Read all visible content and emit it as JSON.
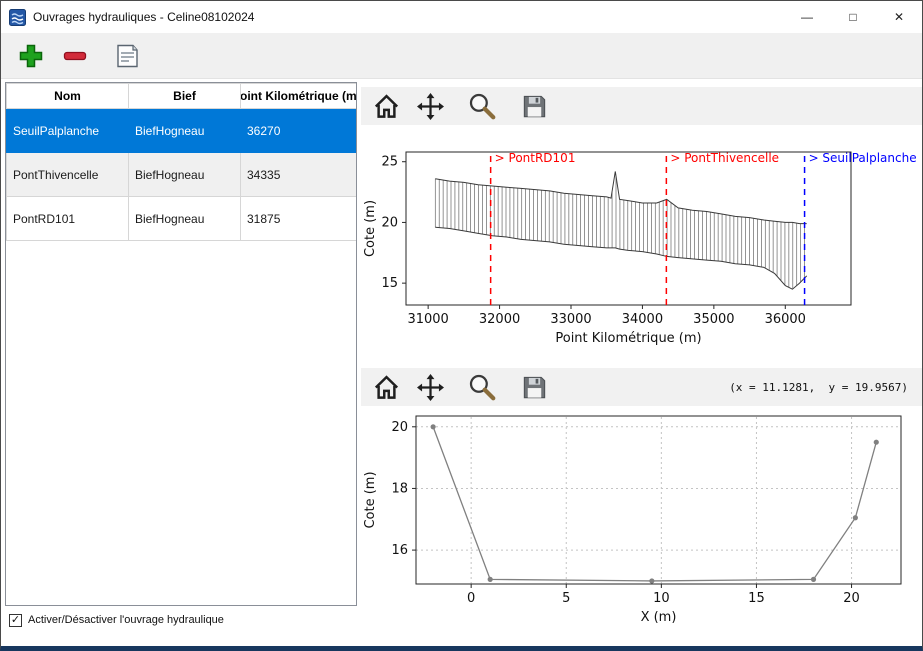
{
  "window": {
    "title": "Ouvrages hydrauliques - Celine08102024",
    "controls": {
      "minimize": "—",
      "maximize": "□",
      "close": "✕"
    }
  },
  "toolbar": {
    "add_tooltip": "add-structure",
    "remove_tooltip": "remove-structure",
    "edit_tooltip": "edit-structure"
  },
  "table": {
    "columns": [
      "Nom",
      "Bief",
      "Point Kilométrique (m)"
    ],
    "rows": [
      {
        "nom": "SeuilPalplanche",
        "bief": "BiefHogneau",
        "pk": "36270",
        "selected": true
      },
      {
        "nom": "PontThivencelle",
        "bief": "BiefHogneau",
        "pk": "34335",
        "selected": false
      },
      {
        "nom": "PontRD101",
        "bief": "BiefHogneau",
        "pk": "31875",
        "selected": false
      }
    ]
  },
  "checkbox": {
    "label": "Activer/Désactiver l'ouvrage hydraulique",
    "checked": true
  },
  "nav": {
    "coords": "(x = 11.1281,  y = 19.9567)"
  },
  "colors": {
    "selected_row": "#0078d7",
    "marker_red": "#ff0000",
    "marker_blue": "#0000ff",
    "profile_line": "#3a3a3a",
    "hatch_line": "#666666",
    "section_line": "#808080",
    "window_edge": "#17375e"
  },
  "chart_data": [
    {
      "type": "line",
      "title": "",
      "xlabel": "Point Kilométrique (m)",
      "ylabel": "Cote (m)",
      "xlim": [
        30690,
        36920
      ],
      "ylim": [
        13.2,
        25.8
      ],
      "xticks": [
        31000,
        32000,
        33000,
        34000,
        35000,
        36000
      ],
      "yticks": [
        15,
        20,
        25
      ],
      "grid": false,
      "legend": "none",
      "profile": {
        "x": [
          31100,
          31300,
          31500,
          31700,
          31900,
          32100,
          32300,
          32500,
          32700,
          32900,
          33100,
          33300,
          33500,
          33560,
          33620,
          33680,
          33800,
          34000,
          34200,
          34340,
          34500,
          34700,
          34900,
          35100,
          35300,
          35500,
          35700,
          35850,
          36000,
          36100,
          36200,
          36300
        ],
        "z_top": [
          23.6,
          23.4,
          23.3,
          23.1,
          23.0,
          22.9,
          22.8,
          22.7,
          22.6,
          22.4,
          22.3,
          22.2,
          22.1,
          22.0,
          24.2,
          21.9,
          21.8,
          21.6,
          21.6,
          21.9,
          21.2,
          21.0,
          20.9,
          20.7,
          20.5,
          20.4,
          20.2,
          20.1,
          20.0,
          20.0,
          19.9,
          19.9
        ],
        "z_bottom": [
          19.6,
          19.5,
          19.3,
          19.1,
          18.9,
          18.8,
          18.6,
          18.5,
          18.4,
          18.2,
          18.1,
          18.0,
          17.9,
          17.9,
          17.9,
          17.8,
          17.7,
          17.6,
          17.4,
          17.2,
          17.1,
          17.0,
          16.9,
          16.8,
          16.6,
          16.5,
          16.3,
          15.8,
          14.8,
          14.5,
          15.0,
          15.6
        ]
      },
      "hatch_step": 55,
      "markers": [
        {
          "x": 31875,
          "label": "> PontRD101",
          "color": "#ff0000"
        },
        {
          "x": 34335,
          "label": "> PontThivencelle",
          "color": "#ff0000"
        },
        {
          "x": 36270,
          "label": "> SeuilPalplanche",
          "color": "#0000ff"
        }
      ]
    },
    {
      "type": "line",
      "title": "",
      "xlabel": "X (m)",
      "ylabel": "Cote (m)",
      "xlim": [
        -2.9,
        22.6
      ],
      "ylim": [
        14.9,
        20.35
      ],
      "xticks": [
        0,
        5,
        10,
        15,
        20
      ],
      "yticks": [
        16,
        18,
        20
      ],
      "grid": true,
      "legend": "none",
      "series": [
        {
          "name": "cross-section",
          "x": [
            -2,
            1,
            9.5,
            18,
            20.2,
            21.3
          ],
          "y": [
            20,
            15.05,
            15,
            15.05,
            17.05,
            19.5
          ]
        }
      ]
    }
  ]
}
